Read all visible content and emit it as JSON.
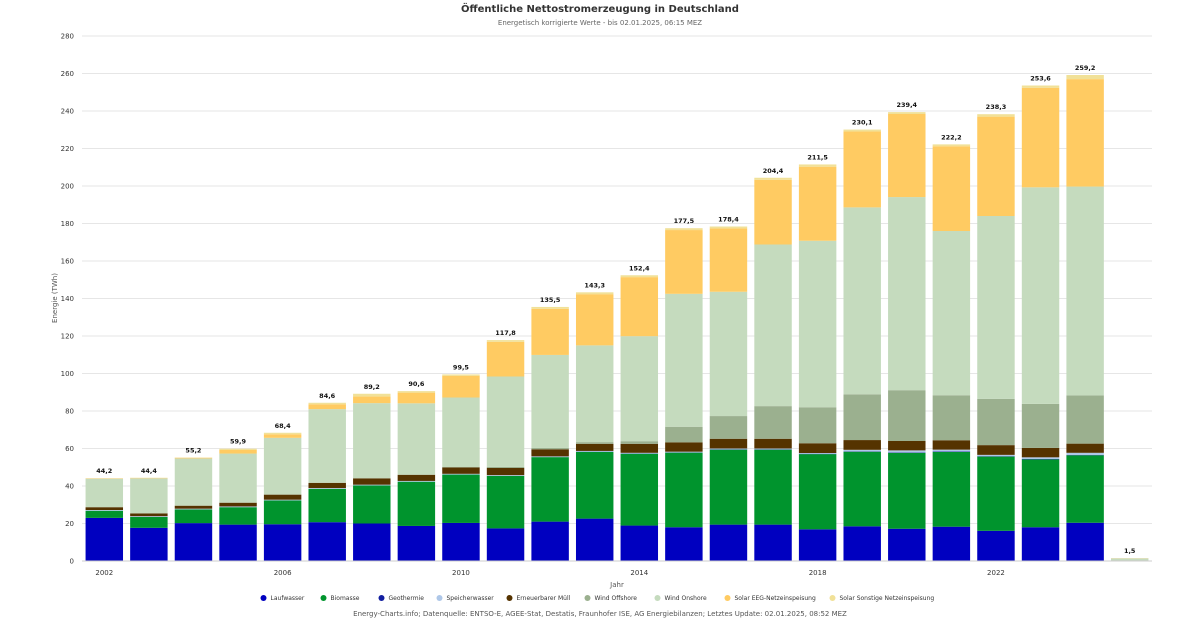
{
  "chart_data": {
    "type": "bar",
    "stacked": true,
    "title": "Öffentliche Nettostromerzeugung in Deutschland",
    "subtitle": "Energetisch korrigierte Werte - bis 02.01.2025, 06:15 MEZ",
    "xlabel": "Jahr",
    "ylabel": "Energie (TWh)",
    "ylim": [
      0,
      280
    ],
    "yticks": [
      0,
      20,
      40,
      60,
      80,
      100,
      120,
      140,
      160,
      180,
      200,
      220,
      240,
      260,
      280
    ],
    "xticks": [
      "2002",
      "2006",
      "2010",
      "2014",
      "2018",
      "2022"
    ],
    "grid": true,
    "legend_position": "bottom",
    "categories": [
      "2002",
      "2003",
      "2004",
      "2005",
      "2006",
      "2007",
      "2008",
      "2009",
      "2010",
      "2011",
      "2012",
      "2013",
      "2014",
      "2015",
      "2016",
      "2017",
      "2018",
      "2019",
      "2020",
      "2021",
      "2022",
      "2023",
      "2024",
      "2025"
    ],
    "totals": [
      "44,2",
      "44,4",
      "55,2",
      "59,9",
      "68,4",
      "84,6",
      "89,2",
      "90,6",
      "99,5",
      "117,8",
      "135,5",
      "143,3",
      "152,4",
      "177,5",
      "178,4",
      "204,4",
      "211,5",
      "230,1",
      "239,4",
      "222,2",
      "238,3",
      "253,6",
      "259,2",
      "1,5"
    ],
    "series": [
      {
        "name": "Laufwasser",
        "color": "#0000c0",
        "values": [
          23.0,
          17.7,
          20.2,
          19.4,
          19.6,
          20.7,
          20.0,
          18.7,
          20.3,
          17.4,
          21.0,
          22.6,
          18.9,
          18.0,
          19.4,
          19.4,
          16.9,
          18.5,
          17.2,
          18.3,
          16.1,
          18.0,
          20.4,
          0.1
        ]
      },
      {
        "name": "Biomasse",
        "color": "#00942d",
        "values": [
          3.8,
          5.8,
          7.3,
          9.3,
          12.7,
          17.8,
          20.3,
          23.6,
          25.8,
          28.0,
          34.4,
          35.6,
          38.3,
          39.8,
          40.0,
          40.0,
          40.1,
          39.8,
          40.5,
          39.9,
          39.6,
          36.2,
          36.0,
          0.1
        ]
      },
      {
        "name": "Geothermie",
        "color": "#121ea0",
        "values": [
          0.0,
          0.0,
          0.0,
          0.0,
          0.0,
          0.0,
          0.0,
          0.0,
          0.0,
          0.0,
          0.0,
          0.1,
          0.1,
          0.1,
          0.2,
          0.2,
          0.2,
          0.2,
          0.2,
          0.2,
          0.2,
          0.2,
          0.2,
          0.0
        ]
      },
      {
        "name": "Speicherwasser",
        "color": "#aec7e8",
        "values": [
          0.4,
          0.4,
          0.4,
          0.4,
          0.4,
          0.4,
          0.4,
          0.4,
          0.4,
          0.4,
          0.4,
          0.4,
          0.4,
          0.4,
          0.4,
          0.4,
          0.4,
          0.8,
          1.1,
          1.0,
          0.7,
          0.9,
          1.1,
          0.0
        ]
      },
      {
        "name": "Erneuerbarer Müll",
        "color": "#553300",
        "values": [
          1.5,
          1.5,
          1.6,
          2.0,
          2.7,
          2.8,
          3.4,
          3.3,
          3.4,
          3.8,
          3.8,
          3.8,
          4.8,
          5.0,
          5.2,
          5.2,
          5.2,
          5.2,
          5.0,
          5.0,
          5.2,
          5.0,
          4.9,
          0.0
        ]
      },
      {
        "name": "Wind Offshore",
        "color": "#9bb08f",
        "values": [
          0.0,
          0.0,
          0.0,
          0.0,
          0.0,
          0.0,
          0.0,
          0.0,
          0.2,
          0.6,
          0.7,
          0.9,
          1.4,
          8.3,
          12.1,
          17.4,
          19.2,
          24.4,
          27.1,
          24.0,
          24.7,
          23.5,
          25.7,
          0.2
        ]
      },
      {
        "name": "Wind Onshore",
        "color": "#c5dbbe",
        "values": [
          15.2,
          18.7,
          25.2,
          26.2,
          30.3,
          39.3,
          40.1,
          38.1,
          37.1,
          48.2,
          49.6,
          51.6,
          56.0,
          70.9,
          66.3,
          86.2,
          88.8,
          99.7,
          103.0,
          87.6,
          97.5,
          115.5,
          111.4,
          1.0
        ]
      },
      {
        "name": "Solar EEG-Netzeinspeisung",
        "color": "#ffcb62",
        "values": [
          0.2,
          0.2,
          0.4,
          1.9,
          1.9,
          2.6,
          3.5,
          5.7,
          11.5,
          18.5,
          24.6,
          27.3,
          31.5,
          34.0,
          33.8,
          34.5,
          39.5,
          40.5,
          44.3,
          45.2,
          53.0,
          53.1,
          57.3,
          0.1
        ]
      },
      {
        "name": "Solar Sonstige Netzeinspeisung",
        "color": "#f1e198",
        "values": [
          0.1,
          0.1,
          0.1,
          0.7,
          0.8,
          0.8,
          1.5,
          0.8,
          0.8,
          0.9,
          1.0,
          1.0,
          1.0,
          1.0,
          1.0,
          1.1,
          1.2,
          1.0,
          1.0,
          1.0,
          1.3,
          1.2,
          2.2,
          0.0
        ]
      }
    ],
    "credits": "Energy-Charts.info; Datenquelle: ENTSO-E, AGEE-Stat, Destatis, Fraunhofer ISE, AG Energiebilanzen; Letztes Update: 02.01.2025, 08:52 MEZ"
  }
}
